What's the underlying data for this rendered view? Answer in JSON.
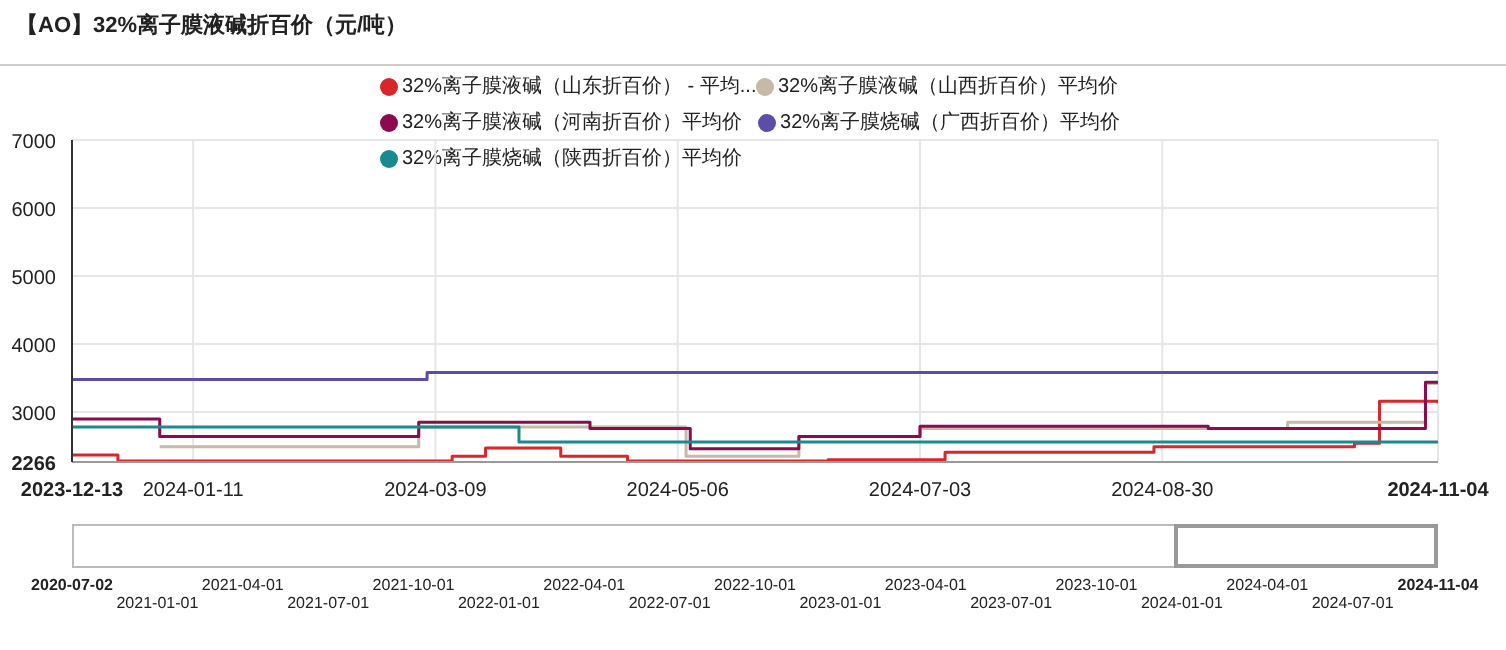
{
  "chart_data": [
    {
      "type": "step",
      "title": "【AO】32%离子膜液碱折百价（元/吨）",
      "legend": "top",
      "grid": true,
      "ylim": [
        2266,
        7000
      ],
      "yticks": [
        2266,
        3000,
        4000,
        5000,
        6000,
        7000
      ],
      "xlim": [
        "2023-12-13",
        "2024-11-04"
      ],
      "xticks": [
        "2023-12-13",
        "2024-01-11",
        "2024-03-09",
        "2024-05-06",
        "2024-07-03",
        "2024-08-30",
        "2024-11-04"
      ],
      "series": [
        {
          "name": "32%离子膜液碱（山东折百价） - 平均...",
          "color": "#d9262c",
          "x": [
            "2023-12-13",
            "2023-12-24",
            "2024-03-13",
            "2024-03-21",
            "2024-04-08",
            "2024-04-24",
            "2024-06-11",
            "2024-07-09",
            "2024-08-28",
            "2024-10-10",
            "2024-10-15",
            "2024-10-21",
            "2024-11-04"
          ],
          "values": [
            2370,
            2280,
            2350,
            2470,
            2350,
            2280,
            2300,
            2410,
            2490,
            2490,
            2540,
            3160,
            3130
          ]
        },
        {
          "name": "32%离子膜液碱（山西折百价）平均价",
          "color": "#c8b8a8",
          "x": [
            "2024-01-03",
            "2024-03-05",
            "2024-05-08",
            "2024-06-04",
            "2024-07-03",
            "2024-09-29",
            "2024-11-01",
            "2024-11-04"
          ],
          "values": [
            2490,
            2780,
            2350,
            2640,
            2760,
            2850,
            3420,
            3420
          ]
        },
        {
          "name": "32%离子膜液碱（河南折百价）平均价",
          "color": "#8b0a50",
          "x": [
            "2023-12-13",
            "2024-01-03",
            "2024-03-05",
            "2024-04-15",
            "2024-05-09",
            "2024-06-04",
            "2024-07-03",
            "2024-09-10",
            "2024-11-01",
            "2024-11-04"
          ],
          "values": [
            2900,
            2640,
            2850,
            2760,
            2460,
            2640,
            2790,
            2760,
            3440,
            3440
          ]
        },
        {
          "name": "32%离子膜烧碱（广西折百价）平均价",
          "color": "#5b4ea8",
          "x": [
            "2023-12-13",
            "2024-03-07",
            "2024-11-04"
          ],
          "values": [
            3480,
            3580,
            3580
          ]
        },
        {
          "name": "32%离子膜烧碱（陕西折百价）平均价",
          "color": "#1a8a8f",
          "x": [
            "2023-12-13",
            "2024-03-29",
            "2024-11-04"
          ],
          "values": [
            2780,
            2560,
            2560
          ]
        }
      ]
    },
    {
      "type": "other",
      "annotations": [
        "2020-07-02",
        "2021-01-01",
        "2021-04-01",
        "2021-07-01",
        "2021-10-01",
        "2022-01-01",
        "2022-04-01",
        "2022-07-01",
        "2022-10-01",
        "2023-01-01",
        "2023-04-01",
        "2023-07-01",
        "2023-10-01",
        "2024-01-01",
        "2024-04-01",
        "2024-07-01",
        "2024-11-04"
      ]
    }
  ]
}
